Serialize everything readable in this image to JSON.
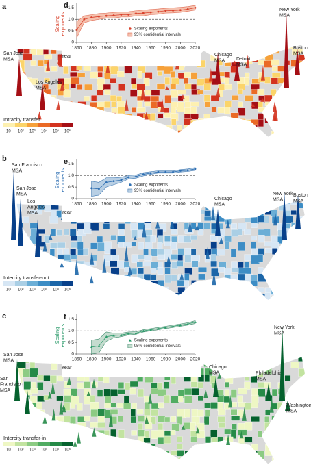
{
  "maps": [
    {
      "label": "a",
      "legend_title": "Intracity transfer",
      "legend_ticks": [
        "10",
        "10²",
        "10³",
        "10⁴",
        "10⁵",
        "10⁶"
      ],
      "colors": [
        "#fdf0b0",
        "#fbd46a",
        "#f6a13a",
        "#ea6a26",
        "#d3331f",
        "#a50f15"
      ],
      "cities": [
        {
          "lines": [
            "San Jose",
            "MSA"
          ]
        },
        {
          "lines": [
            "Los Angeles",
            "MSA"
          ]
        },
        {
          "lines": [
            "Chicago",
            "MSA"
          ]
        },
        {
          "lines": [
            "Detroit",
            "MSA"
          ]
        },
        {
          "lines": [
            "New York",
            "MSA"
          ]
        },
        {
          "lines": [
            "Boston",
            "MSA"
          ]
        }
      ]
    },
    {
      "label": "b",
      "legend_title": "Intercity transfer-out",
      "legend_ticks": [
        "10",
        "10²",
        "10³",
        "10⁴",
        "10⁵",
        "10⁶"
      ],
      "colors": [
        "#d6e6f4",
        "#aacfe5",
        "#6baed6",
        "#3d8dc5",
        "#1c66a8",
        "#08408a"
      ],
      "cities": [
        {
          "lines": [
            "San Francisco",
            "MSA"
          ]
        },
        {
          "lines": [
            "San Jose",
            "MSA"
          ]
        },
        {
          "lines": [
            "Los",
            "Angeles",
            "MSA"
          ]
        },
        {
          "lines": [
            "Chicago",
            "MSA"
          ]
        },
        {
          "lines": [
            "New York",
            "MSA"
          ]
        },
        {
          "lines": [
            "Boston",
            "MSA"
          ]
        }
      ]
    },
    {
      "label": "c",
      "legend_title": "Intercity transfer-in",
      "legend_ticks": [
        "10",
        "10²",
        "10³",
        "10⁴",
        "10⁵",
        "10⁶"
      ],
      "colors": [
        "#eef7c4",
        "#c2e3a0",
        "#8ccb83",
        "#51ac62",
        "#258a47",
        "#05612e"
      ],
      "cities": [
        {
          "lines": [
            "San Jose",
            "MSA"
          ]
        },
        {
          "lines": [
            "San",
            "Francisco",
            "MSA"
          ]
        },
        {
          "lines": [
            "Chicago",
            "MSA"
          ]
        },
        {
          "lines": [
            "Philadelphia",
            "MSA"
          ]
        },
        {
          "lines": [
            "New York",
            "MSA"
          ]
        },
        {
          "lines": [
            "Washington",
            "MSA"
          ]
        }
      ]
    }
  ],
  "chart_data": [
    {
      "type": "line",
      "label": "d",
      "y_label": [
        "Scaling",
        "exponents"
      ],
      "x_label": "Year",
      "x": [
        1860,
        1870,
        1880,
        1890,
        1900,
        1910,
        1920,
        1930,
        1940,
        1950,
        1960,
        1970,
        1980,
        1990,
        2000,
        2010,
        2020
      ],
      "series": [
        {
          "name": "Scaling exponents",
          "color": "#d9412b",
          "marker": "circle",
          "values": [
            0.55,
            1.0,
            1.08,
            1.12,
            1.15,
            1.17,
            1.2,
            1.2,
            1.25,
            1.27,
            1.3,
            1.33,
            1.37,
            1.38,
            1.4,
            1.44,
            1.5
          ]
        }
      ],
      "band": {
        "name": "95% confidential intervals",
        "color": "#f5c1ae",
        "edge_color": "#e06a52",
        "lower": [
          0.2,
          0.85,
          0.95,
          1.0,
          1.05,
          1.05,
          1.1,
          1.1,
          1.15,
          1.15,
          1.2,
          1.22,
          1.27,
          1.28,
          1.3,
          1.35,
          1.4
        ],
        "upper": [
          0.9,
          1.15,
          1.2,
          1.25,
          1.27,
          1.3,
          1.32,
          1.33,
          1.37,
          1.4,
          1.43,
          1.45,
          1.48,
          1.5,
          1.52,
          1.55,
          1.6
        ]
      },
      "reference_line": 1,
      "xlim": [
        1860,
        2020
      ],
      "ylim": [
        0,
        1.6
      ],
      "xticks": [
        1860,
        1880,
        1900,
        1920,
        1940,
        1960,
        1980,
        2000,
        2020
      ],
      "yticks": [
        0,
        0.5,
        {
          "value": 1,
          "label": "1.0"
        },
        1.5
      ],
      "legend": "lower right"
    },
    {
      "type": "line",
      "label": "e",
      "y_label": [
        "Scaling",
        "exponents"
      ],
      "x_label": "Year",
      "x": [
        1880,
        1890,
        1900,
        1910,
        1920,
        1930,
        1940,
        1950,
        1960,
        1970,
        1980,
        1990,
        2000,
        2010,
        2020
      ],
      "series": [
        {
          "name": "Scaling exponents",
          "color": "#2e6fb3",
          "marker": "circle",
          "values": [
            0.45,
            0.42,
            0.7,
            0.75,
            0.8,
            0.92,
            0.95,
            1.05,
            1.1,
            1.15,
            1.15,
            1.15,
            1.2,
            1.22,
            1.28
          ]
        }
      ],
      "band": {
        "name": "95% confidential intervals",
        "color": "#b8cfe4",
        "edge_color": "#3d76b0",
        "lower": [
          0.1,
          0.15,
          0.5,
          0.6,
          0.7,
          0.85,
          0.88,
          0.98,
          1.05,
          1.1,
          1.1,
          1.1,
          1.15,
          1.17,
          1.22
        ],
        "upper": [
          0.75,
          0.7,
          0.9,
          0.9,
          0.92,
          1.0,
          1.02,
          1.12,
          1.16,
          1.2,
          1.2,
          1.2,
          1.25,
          1.28,
          1.34
        ]
      },
      "reference_line": 1,
      "xlim": [
        1860,
        2020
      ],
      "ylim": [
        0,
        1.6
      ],
      "xticks": [
        1860,
        1880,
        1900,
        1920,
        1940,
        1960,
        1980,
        2000,
        2020
      ],
      "yticks": [
        0,
        0.5,
        {
          "value": 1,
          "label": "1.0"
        },
        1.5
      ],
      "legend": "lower right"
    },
    {
      "type": "line",
      "label": "f",
      "y_label": [
        "Scaling",
        "exponents"
      ],
      "x_label": "Year",
      "x": [
        1880,
        1890,
        1900,
        1910,
        1920,
        1930,
        1940,
        1950,
        1960,
        1970,
        1980,
        1990,
        2000,
        2010,
        2020
      ],
      "series": [
        {
          "name": "Scaling exponents",
          "color": "#2a9a6a",
          "marker": "triangle",
          "values": [
            0.3,
            0.35,
            0.75,
            0.8,
            0.82,
            0.88,
            0.9,
            1.0,
            1.05,
            1.1,
            1.15,
            1.2,
            1.25,
            1.3,
            1.38
          ]
        }
      ],
      "band": {
        "name": "95% confidential intervals",
        "color": "#c5dccf",
        "edge_color": "#3b8a6a",
        "lower": [
          0.0,
          0.05,
          0.55,
          0.7,
          0.75,
          0.82,
          0.85,
          0.95,
          1.0,
          1.05,
          1.1,
          1.15,
          1.2,
          1.25,
          1.32
        ],
        "upper": [
          0.6,
          0.65,
          0.95,
          0.9,
          0.9,
          0.95,
          0.96,
          1.05,
          1.1,
          1.15,
          1.2,
          1.25,
          1.3,
          1.35,
          1.44
        ]
      },
      "reference_line": 1,
      "xlim": [
        1860,
        2020
      ],
      "ylim": [
        0,
        1.6
      ],
      "xticks": [
        1860,
        1880,
        1900,
        1920,
        1940,
        1960,
        1980,
        2000,
        2020
      ],
      "yticks": [
        0,
        0.5,
        {
          "value": 1,
          "label": "1.0"
        },
        1.5
      ],
      "legend": "lower right"
    }
  ]
}
